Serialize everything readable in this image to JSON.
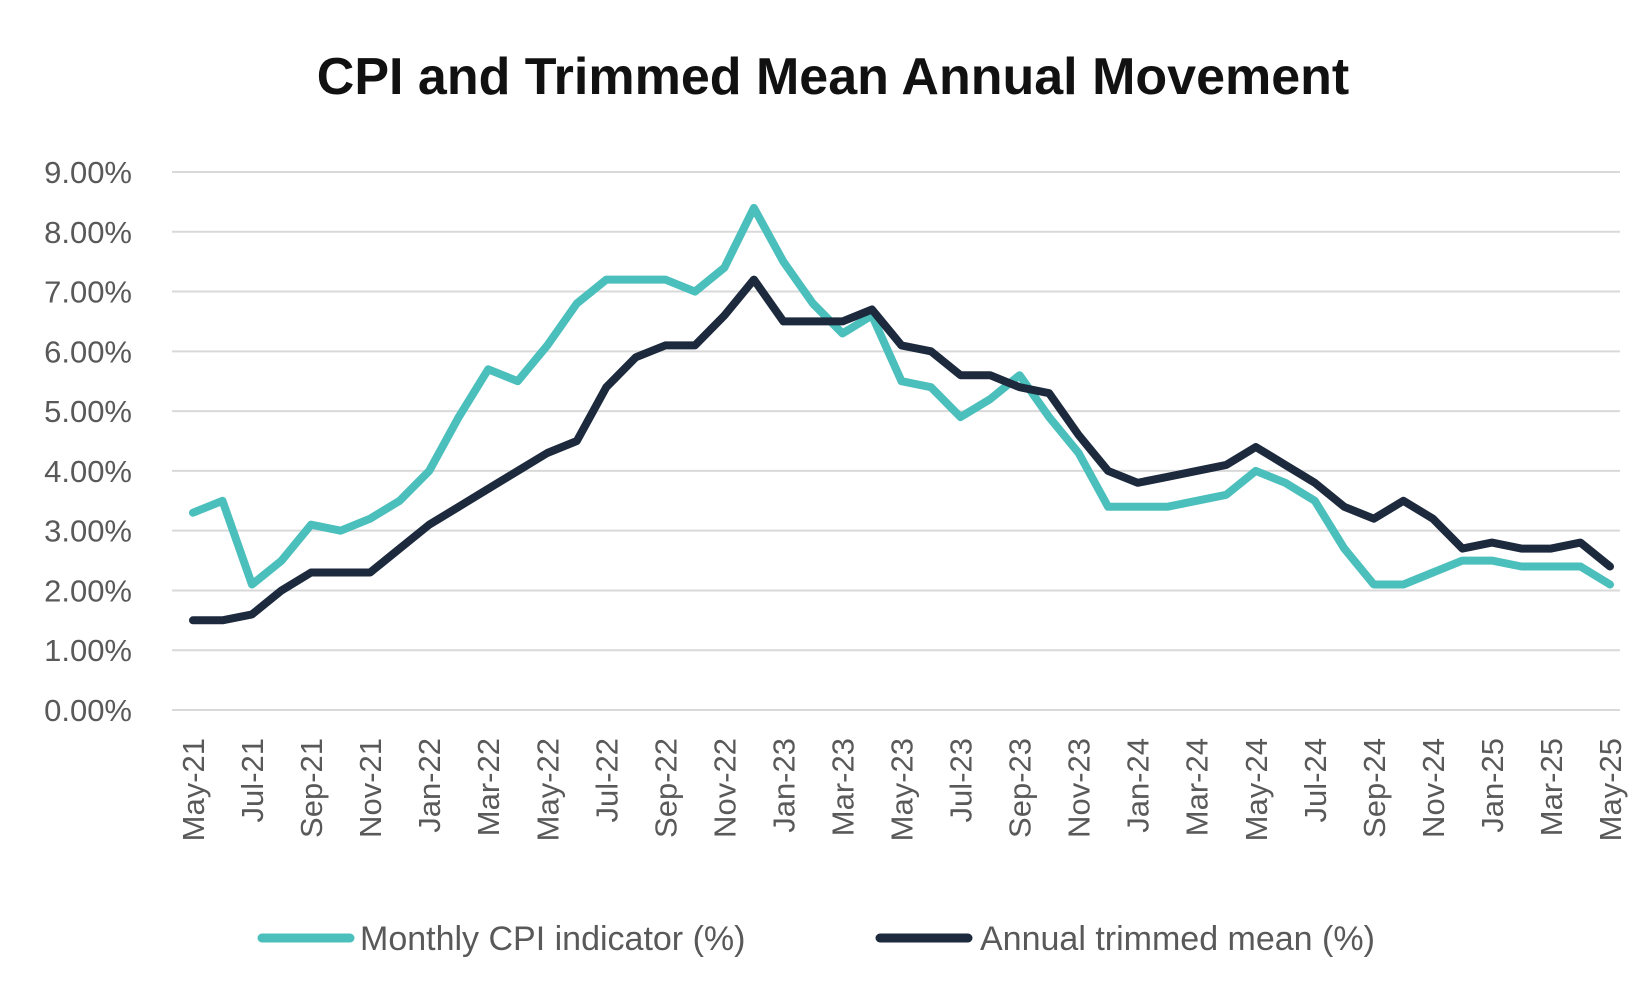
{
  "chart_data": {
    "type": "line",
    "title": "CPI and Trimmed Mean Annual Movement",
    "xlabel": "",
    "ylabel": "",
    "ylim": [
      0,
      9
    ],
    "y_ticks": [
      "0.00%",
      "1.00%",
      "2.00%",
      "3.00%",
      "4.00%",
      "5.00%",
      "6.00%",
      "7.00%",
      "8.00%",
      "9.00%"
    ],
    "grid": true,
    "legend_position": "bottom",
    "categories": [
      "May-21",
      "Jun-21",
      "Jul-21",
      "Aug-21",
      "Sep-21",
      "Oct-21",
      "Nov-21",
      "Dec-21",
      "Jan-22",
      "Feb-22",
      "Mar-22",
      "Apr-22",
      "May-22",
      "Jun-22",
      "Jul-22",
      "Aug-22",
      "Sep-22",
      "Oct-22",
      "Nov-22",
      "Dec-22",
      "Jan-23",
      "Feb-23",
      "Mar-23",
      "Apr-23",
      "May-23",
      "Jun-23",
      "Jul-23",
      "Aug-23",
      "Sep-23",
      "Oct-23",
      "Nov-23",
      "Dec-23",
      "Jan-24",
      "Feb-24",
      "Mar-24",
      "Apr-24",
      "May-24",
      "Jun-24",
      "Jul-24",
      "Aug-24",
      "Sep-24",
      "Oct-24",
      "Nov-24",
      "Dec-24",
      "Jan-25",
      "Feb-25",
      "Mar-25",
      "Apr-25",
      "May-25"
    ],
    "tick_labels": [
      "May-21",
      "Jul-21",
      "Sep-21",
      "Nov-21",
      "Jan-22",
      "Mar-22",
      "May-22",
      "Jul-22",
      "Sep-22",
      "Nov-22",
      "Jan-23",
      "Mar-23",
      "May-23",
      "Jul-23",
      "Sep-23",
      "Nov-23",
      "Jan-24",
      "Mar-24",
      "May-24",
      "Jul-24",
      "Sep-24",
      "Nov-24",
      "Jan-25",
      "Mar-25",
      "May-25"
    ],
    "series": [
      {
        "name": "Monthly CPI indicator (%)",
        "color": "#4bbfbb",
        "values": [
          3.3,
          3.5,
          2.1,
          2.5,
          3.1,
          3.0,
          3.2,
          3.5,
          4.0,
          4.9,
          5.7,
          5.5,
          6.1,
          6.8,
          7.2,
          7.2,
          7.2,
          7.0,
          7.4,
          8.4,
          7.5,
          6.8,
          6.3,
          6.6,
          5.5,
          5.4,
          4.9,
          5.2,
          5.6,
          4.9,
          4.3,
          3.4,
          3.4,
          3.4,
          3.5,
          3.6,
          4.0,
          3.8,
          3.5,
          2.7,
          2.1,
          2.1,
          2.3,
          2.5,
          2.5,
          2.4,
          2.4,
          2.4,
          2.1
        ]
      },
      {
        "name": "Annual trimmed mean (%)",
        "color": "#1d2a3d",
        "values": [
          1.5,
          1.5,
          1.6,
          2.0,
          2.3,
          2.3,
          2.3,
          2.7,
          3.1,
          3.4,
          3.7,
          4.0,
          4.3,
          4.5,
          5.4,
          5.9,
          6.1,
          6.1,
          6.6,
          7.2,
          6.5,
          6.5,
          6.5,
          6.7,
          6.1,
          6.0,
          5.6,
          5.6,
          5.4,
          5.3,
          4.6,
          4.0,
          3.8,
          3.9,
          4.0,
          4.1,
          4.4,
          4.1,
          3.8,
          3.4,
          3.2,
          3.5,
          3.2,
          2.7,
          2.8,
          2.7,
          2.7,
          2.8,
          2.4
        ]
      }
    ]
  }
}
